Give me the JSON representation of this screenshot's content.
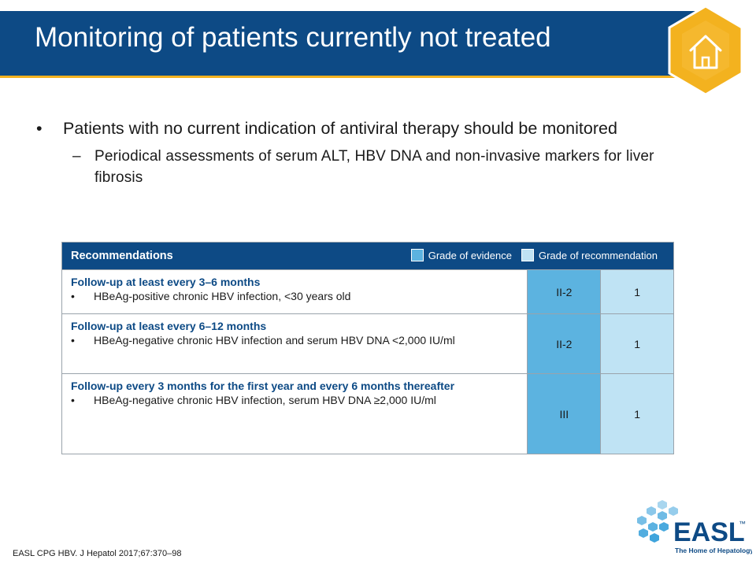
{
  "header": {
    "title": "Monitoring of patients currently not treated",
    "home_icon": "home-icon"
  },
  "content": {
    "bullet": {
      "marker": "•",
      "text": "Patients with no current indication of antiviral therapy should be monitored",
      "sub": {
        "marker": "–",
        "text": "Periodical assessments of serum ALT, HBV DNA and non-invasive markers for liver fibrosis"
      }
    }
  },
  "recommendations": {
    "title": "Recommendations",
    "legend": {
      "evidence": "Grade of evidence",
      "recommendation": "Grade of recommendation",
      "evidence_color": "#5cb3e0",
      "recommendation_color": "#bfe3f4"
    },
    "rows": [
      {
        "heading": "Follow-up at least every 3–6 months",
        "item_marker": "•",
        "item": "HBeAg-positive chronic HBV infection, <30 years old",
        "evidence": "II-2",
        "recommendation": "1"
      },
      {
        "heading": "Follow-up at least every 6–12 months",
        "item_marker": "•",
        "item": "HBeAg-negative chronic HBV infection and serum HBV DNA <2,000 IU/ml",
        "evidence": "II-2",
        "recommendation": "1"
      },
      {
        "heading": "Follow-up every 3 months for the first year and every 6 months thereafter",
        "item_marker": "•",
        "item": "HBeAg-negative chronic HBV infection, serum HBV DNA ≥2,000 IU/ml",
        "evidence": "III",
        "recommendation": "1"
      }
    ]
  },
  "footer": {
    "reference": "EASL CPG HBV. J Hepatol 2017;67:370–98",
    "logo_text": "EASL",
    "logo_tm": "™",
    "logo_tagline": "The Home of Hepatology"
  },
  "colors": {
    "brand_blue": "#0d4a85",
    "accent_yellow": "#f3b21f",
    "logo_light_blue": "#3fa4dc"
  }
}
